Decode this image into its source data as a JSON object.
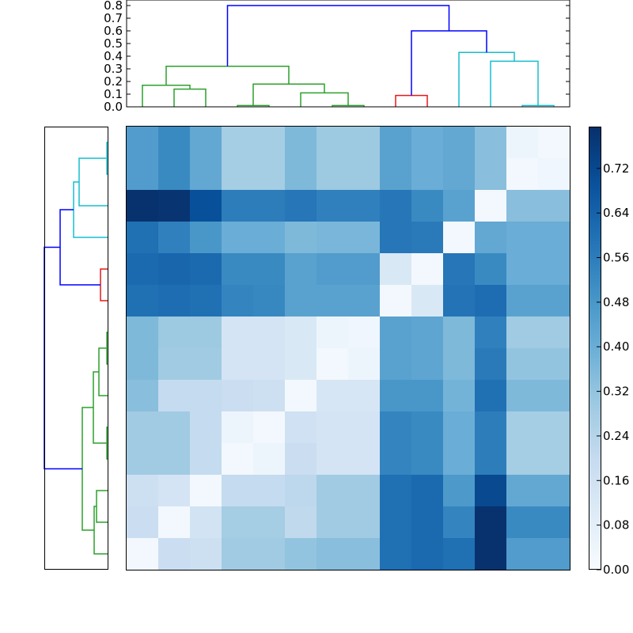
{
  "chart_data": {
    "type": "heatmap",
    "title": "",
    "colormap": "Blues",
    "rows": 14,
    "cols": 14,
    "values": [
      [
        0.46,
        0.52,
        0.42,
        0.28,
        0.28,
        0.36,
        0.3,
        0.3,
        0.44,
        0.4,
        0.42,
        0.34,
        0.04,
        0.02
      ],
      [
        0.46,
        0.52,
        0.42,
        0.28,
        0.28,
        0.36,
        0.3,
        0.3,
        0.44,
        0.4,
        0.42,
        0.34,
        0.02,
        0.03
      ],
      [
        0.79,
        0.78,
        0.7,
        0.56,
        0.56,
        0.58,
        0.55,
        0.55,
        0.58,
        0.52,
        0.44,
        0.02,
        0.34,
        0.34
      ],
      [
        0.6,
        0.55,
        0.48,
        0.4,
        0.4,
        0.36,
        0.37,
        0.37,
        0.58,
        0.57,
        0.02,
        0.42,
        0.4,
        0.4
      ],
      [
        0.62,
        0.63,
        0.62,
        0.52,
        0.52,
        0.44,
        0.46,
        0.46,
        0.12,
        0.02,
        0.58,
        0.52,
        0.4,
        0.4
      ],
      [
        0.6,
        0.61,
        0.6,
        0.54,
        0.53,
        0.44,
        0.44,
        0.44,
        0.02,
        0.12,
        0.59,
        0.61,
        0.44,
        0.44
      ],
      [
        0.36,
        0.3,
        0.3,
        0.14,
        0.14,
        0.12,
        0.04,
        0.03,
        0.44,
        0.43,
        0.36,
        0.55,
        0.29,
        0.29
      ],
      [
        0.36,
        0.29,
        0.29,
        0.14,
        0.14,
        0.12,
        0.02,
        0.04,
        0.44,
        0.43,
        0.36,
        0.57,
        0.32,
        0.32
      ],
      [
        0.34,
        0.2,
        0.2,
        0.18,
        0.17,
        0.02,
        0.13,
        0.13,
        0.48,
        0.48,
        0.38,
        0.6,
        0.36,
        0.36
      ],
      [
        0.29,
        0.29,
        0.2,
        0.04,
        0.02,
        0.16,
        0.14,
        0.14,
        0.54,
        0.52,
        0.4,
        0.56,
        0.28,
        0.28
      ],
      [
        0.29,
        0.29,
        0.2,
        0.02,
        0.04,
        0.18,
        0.14,
        0.14,
        0.54,
        0.52,
        0.4,
        0.56,
        0.28,
        0.28
      ],
      [
        0.17,
        0.14,
        0.02,
        0.2,
        0.2,
        0.22,
        0.29,
        0.29,
        0.6,
        0.62,
        0.47,
        0.72,
        0.42,
        0.42
      ],
      [
        0.18,
        0.02,
        0.15,
        0.28,
        0.28,
        0.21,
        0.29,
        0.29,
        0.6,
        0.62,
        0.54,
        0.79,
        0.52,
        0.52
      ],
      [
        0.02,
        0.18,
        0.17,
        0.29,
        0.29,
        0.32,
        0.34,
        0.34,
        0.6,
        0.62,
        0.6,
        0.79,
        0.46,
        0.46
      ]
    ],
    "colorbar": {
      "min": 0.0,
      "max": 0.795,
      "ticks": [
        "0.00",
        "0.08",
        "0.16",
        "0.24",
        "0.32",
        "0.40",
        "0.48",
        "0.56",
        "0.64",
        "0.72"
      ]
    },
    "top_dendrogram": {
      "y_ticks": [
        "0.0",
        "0.1",
        "0.2",
        "0.3",
        "0.4",
        "0.5",
        "0.6",
        "0.7",
        "0.8"
      ],
      "ylim": [
        0.0,
        0.8
      ],
      "cluster_colors": {
        "green": "#2ca02c",
        "red": "#e41a1c",
        "cyan": "#17becf",
        "blue": "#0000ff"
      },
      "links": [
        {
          "left": 1,
          "right": 2,
          "height": 0.14,
          "color": "green"
        },
        {
          "left": 0,
          "right": 1.5,
          "height": 0.17,
          "color": "green"
        },
        {
          "left": 3,
          "right": 4,
          "height": 0.01,
          "color": "green"
        },
        {
          "left": 6,
          "right": 7,
          "height": 0.01,
          "color": "green"
        },
        {
          "left": 5,
          "right": 6.5,
          "height": 0.11,
          "color": "green"
        },
        {
          "left": 3.5,
          "right": 5.75,
          "height": 0.18,
          "color": "green"
        },
        {
          "left": 0.75,
          "right": 4.625,
          "height": 0.32,
          "color": "green"
        },
        {
          "left": 8,
          "right": 9,
          "height": 0.09,
          "color": "red"
        },
        {
          "left": 12,
          "right": 13,
          "height": 0.01,
          "color": "cyan"
        },
        {
          "left": 11,
          "right": 12.5,
          "height": 0.36,
          "color": "cyan"
        },
        {
          "left": 10,
          "right": 11.75,
          "height": 0.43,
          "color": "cyan"
        },
        {
          "left": 8.5,
          "right": 10.875,
          "height": 0.6,
          "color": "blue"
        },
        {
          "left": 2.6875,
          "right": 9.6875,
          "height": 0.8,
          "color": "blue"
        }
      ]
    }
  }
}
